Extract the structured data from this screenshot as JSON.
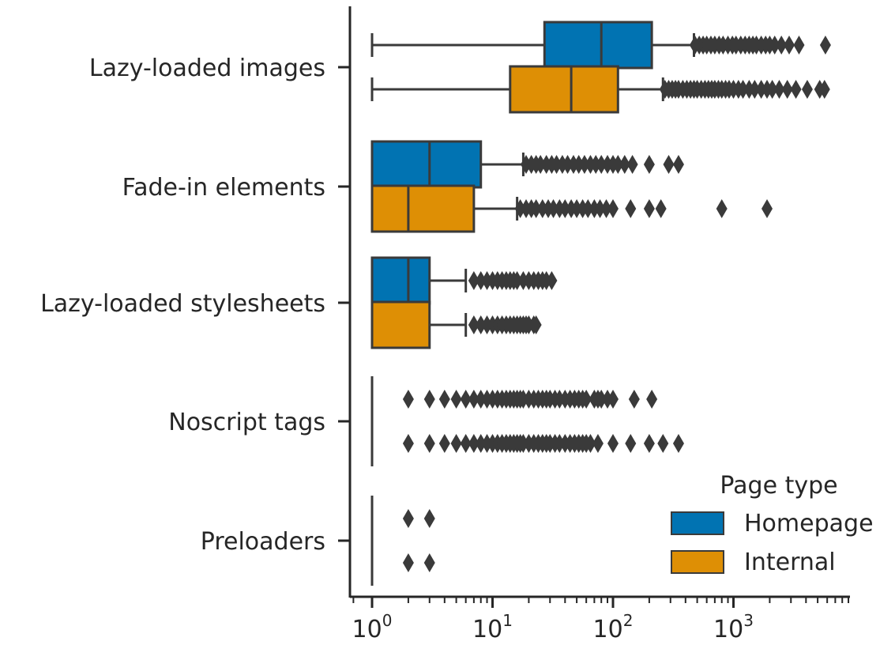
{
  "chart_data": {
    "type": "boxplot",
    "orientation": "horizontal",
    "xscale": "log",
    "xlim": [
      0.65,
      9500
    ],
    "x_ticks": [
      {
        "base": "10",
        "exp": "0"
      },
      {
        "base": "10",
        "exp": "1"
      },
      {
        "base": "10",
        "exp": "2"
      },
      {
        "base": "10",
        "exp": "3"
      }
    ],
    "categories": [
      "Lazy-loaded images",
      "Fade-in elements",
      "Lazy-loaded stylesheets",
      "Noscript tags",
      "Preloaders"
    ],
    "legend": {
      "title": "Page type",
      "placement": "lower-right"
    },
    "series": [
      {
        "name": "Homepage",
        "color": "#0173b2",
        "boxes": [
          {
            "whislo": 1,
            "q1": 27,
            "med": 80,
            "q3": 210,
            "whishi": 470,
            "fliers": [
              480,
              520,
              560,
              600,
              650,
              700,
              760,
              820,
              900,
              980,
              1050,
              1150,
              1250,
              1350,
              1450,
              1550,
              1700,
              1850,
              2000,
              2200,
              2500,
              2900,
              3500,
              5800
            ]
          },
          {
            "whislo": 1,
            "q1": 1,
            "med": 3,
            "q3": 8,
            "whishi": 18,
            "fliers": [
              19,
              21,
              23,
              25,
              28,
              31,
              34,
              38,
              42,
              47,
              52,
              58,
              65,
              72,
              80,
              90,
              100,
              110,
              125,
              145,
              200,
              290,
              350
            ]
          },
          {
            "whislo": 1,
            "q1": 1,
            "med": 2,
            "q3": 3,
            "whishi": 6,
            "fliers": [
              7,
              8,
              9,
              10,
              11,
              12,
              13,
              14,
              15,
              16,
              18,
              20,
              22,
              24,
              26,
              28,
              31
            ]
          },
          {
            "whislo": 1,
            "q1": 1,
            "med": 1,
            "q3": 1,
            "whishi": 1,
            "fliers": [
              2,
              3,
              4,
              5,
              6,
              7,
              8,
              9,
              10,
              11,
              12,
              13,
              14,
              15,
              16,
              17,
              18,
              20,
              22,
              24,
              26,
              28,
              30,
              33,
              36,
              40,
              44,
              48,
              52,
              56,
              60,
              70,
              75,
              80,
              90,
              100,
              150,
              210
            ]
          },
          {
            "whislo": 1,
            "q1": 1,
            "med": 1,
            "q3": 1,
            "whishi": 1,
            "fliers": [
              2,
              3
            ]
          }
        ]
      },
      {
        "name": "Internal",
        "color": "#de8f05",
        "boxes": [
          {
            "whislo": 1,
            "q1": 14,
            "med": 45,
            "q3": 110,
            "whishi": 260,
            "fliers": [
              270,
              290,
              310,
              330,
              350,
              380,
              410,
              440,
              470,
              500,
              540,
              580,
              620,
              660,
              700,
              750,
              800,
              860,
              920,
              1000,
              1100,
              1200,
              1350,
              1500,
              1700,
              1900,
              2100,
              2400,
              2800,
              3300,
              4100,
              5200,
              5700
            ]
          },
          {
            "whislo": 1,
            "q1": 1,
            "med": 2,
            "q3": 7,
            "whishi": 16,
            "fliers": [
              17,
              19,
              21,
              23,
              26,
              29,
              32,
              36,
              40,
              45,
              50,
              56,
              62,
              70,
              78,
              88,
              100,
              140,
              200,
              250,
              800,
              1900
            ]
          },
          {
            "whislo": 1,
            "q1": 1,
            "med": 1,
            "q3": 3,
            "whishi": 6,
            "fliers": [
              7,
              8,
              9,
              10,
              11,
              12,
              13,
              14,
              15,
              16,
              17,
              18,
              19,
              20,
              22,
              23
            ]
          },
          {
            "whislo": 1,
            "q1": 1,
            "med": 1,
            "q3": 1,
            "whishi": 1,
            "fliers": [
              2,
              3,
              4,
              5,
              6,
              7,
              8,
              9,
              10,
              11,
              12,
              13,
              14,
              15,
              16,
              17,
              18,
              20,
              22,
              24,
              26,
              28,
              30,
              33,
              36,
              40,
              44,
              48,
              52,
              56,
              60,
              65,
              75,
              100,
              140,
              200,
              260,
              350
            ]
          },
          {
            "whislo": 1,
            "q1": 1,
            "med": 1,
            "q3": 1,
            "whishi": 1,
            "fliers": [
              2,
              3
            ]
          }
        ]
      }
    ]
  }
}
